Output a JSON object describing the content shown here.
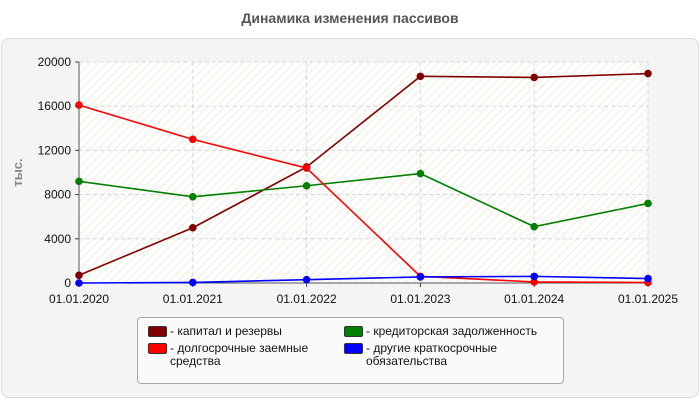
{
  "chart_data": {
    "type": "line",
    "title": "Динамика изменения пассивов",
    "ylabel": "тыс.",
    "xlabel": "",
    "x": [
      "01.01.2020",
      "01.01.2021",
      "01.01.2022",
      "01.01.2023",
      "01.01.2024",
      "01.01.2025"
    ],
    "ylim": [
      0,
      20000
    ],
    "yticks": [
      0,
      4000,
      8000,
      12000,
      16000,
      20000
    ],
    "grid": true,
    "legend_position": "bottom",
    "series": [
      {
        "name": "капитал и резервы",
        "color": "#800000",
        "values": [
          700,
          5000,
          10500,
          18700,
          18600,
          18950
        ]
      },
      {
        "name": "кредиторская задолженность",
        "color": "#008000",
        "values": [
          9200,
          7800,
          8800,
          9900,
          5100,
          7200
        ]
      },
      {
        "name": "долгосрочные заемные средства",
        "color": "#ff0000",
        "values": [
          16100,
          13000,
          10400,
          600,
          100,
          50
        ]
      },
      {
        "name": "другие краткосрочные обязательства",
        "color": "#0000ff",
        "values": [
          0,
          50,
          300,
          550,
          600,
          400
        ]
      }
    ]
  }
}
